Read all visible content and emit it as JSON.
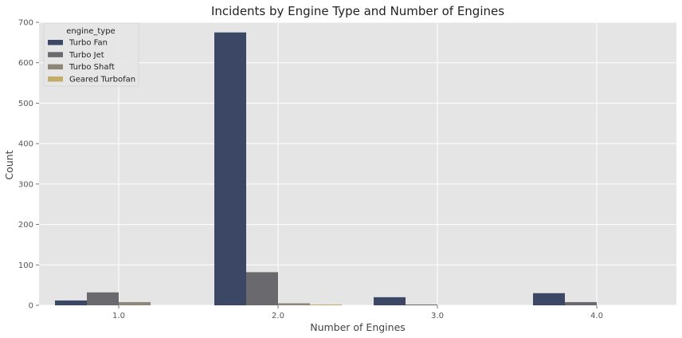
{
  "chart_data": {
    "type": "bar",
    "title": "Incidents by Engine Type and Number of Engines",
    "xlabel": "Number of Engines",
    "ylabel": "Count",
    "categories": [
      "1.0",
      "2.0",
      "3.0",
      "4.0"
    ],
    "ylim": [
      0,
      700
    ],
    "yticks": [
      0,
      100,
      200,
      300,
      400,
      500,
      600,
      700
    ],
    "grid": true,
    "legend": {
      "title": "engine_type",
      "placement": "top-left"
    },
    "series": [
      {
        "name": "Turbo Fan",
        "color": "#3c4766",
        "values": [
          12,
          675,
          20,
          30
        ]
      },
      {
        "name": "Turbo Jet",
        "color": "#6a6a6e",
        "values": [
          32,
          82,
          2,
          8
        ]
      },
      {
        "name": "Turbo Shaft",
        "color": "#8e8679",
        "values": [
          8,
          5,
          0,
          0
        ]
      },
      {
        "name": "Geared Turbofan",
        "color": "#c1ac6a",
        "values": [
          0,
          2,
          0,
          0
        ]
      }
    ]
  },
  "colors": {
    "plot_background": "#e5e5e5",
    "grid": "#ffffff"
  }
}
